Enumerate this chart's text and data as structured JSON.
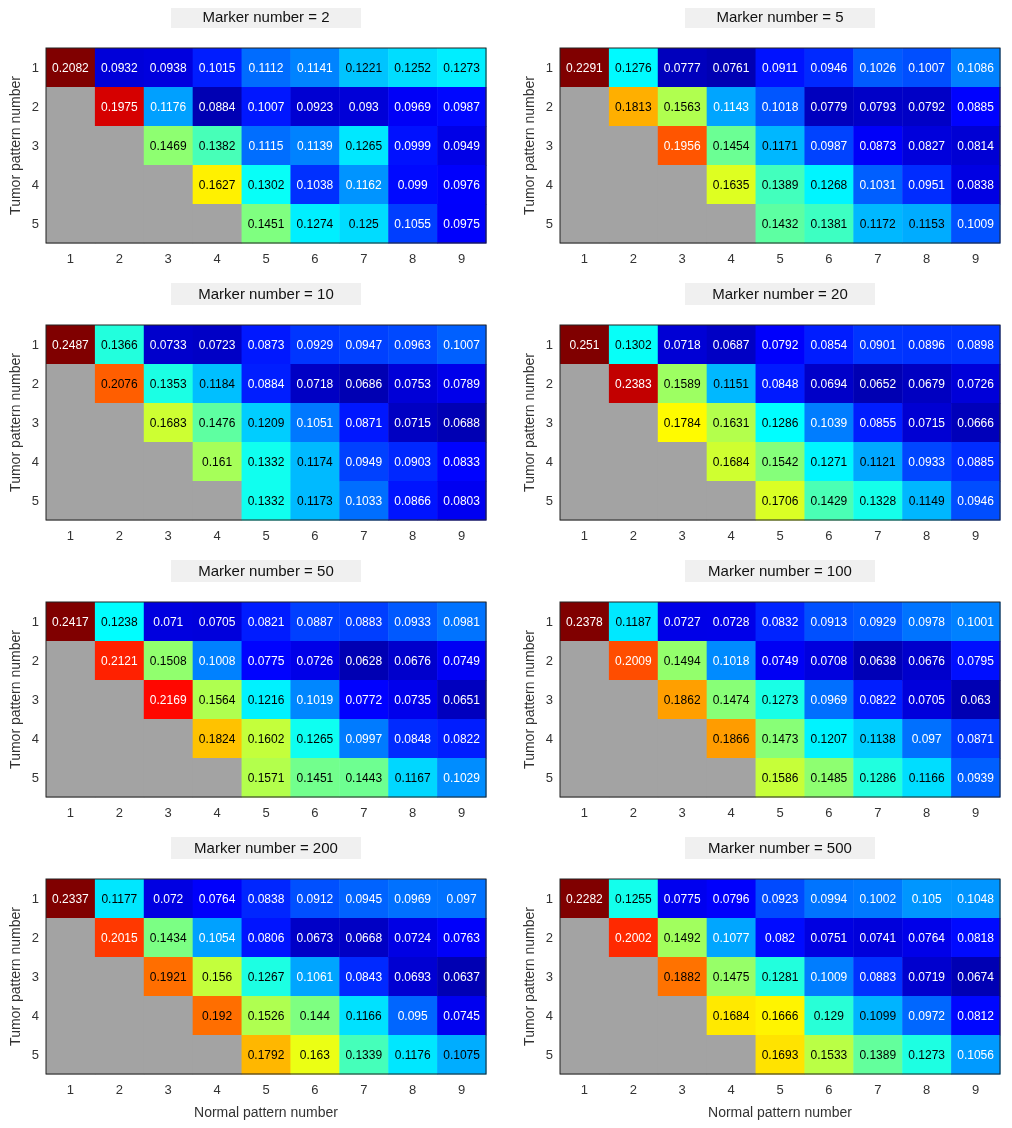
{
  "chart_data": [
    {
      "type": "heatmap",
      "title": "Marker number = 2",
      "ylabel": "Tumor pattern number",
      "categories": [
        "1",
        "2",
        "3",
        "4",
        "5",
        "6",
        "7",
        "8",
        "9"
      ],
      "y_categories": [
        "1",
        "2",
        "3",
        "4",
        "5"
      ],
      "data_labels": true,
      "cells": [
        [
          0.2082,
          0.0932,
          0.0938,
          0.1015,
          0.1112,
          0.1141,
          0.1221,
          0.1252,
          0.1273
        ],
        [
          null,
          0.1975,
          0.1176,
          0.0884,
          0.1007,
          0.0923,
          0.093,
          0.0969,
          0.0987
        ],
        [
          null,
          null,
          0.1469,
          0.1382,
          0.1115,
          0.1139,
          0.1265,
          0.0999,
          0.0949
        ],
        [
          null,
          null,
          null,
          0.1627,
          0.1302,
          0.1038,
          0.1162,
          0.099,
          0.0976
        ],
        [
          null,
          null,
          null,
          null,
          0.1451,
          0.1274,
          0.125,
          0.1055,
          0.0975
        ]
      ]
    },
    {
      "type": "heatmap",
      "title": "Marker number = 5",
      "ylabel": "Tumor pattern number",
      "categories": [
        "1",
        "2",
        "3",
        "4",
        "5",
        "6",
        "7",
        "8",
        "9"
      ],
      "y_categories": [
        "1",
        "2",
        "3",
        "4",
        "5"
      ],
      "data_labels": true,
      "cells": [
        [
          0.2291,
          0.1276,
          0.0777,
          0.0761,
          0.0911,
          0.0946,
          0.1026,
          0.1007,
          0.1086
        ],
        [
          null,
          0.1813,
          0.1563,
          0.1143,
          0.1018,
          0.0779,
          0.0793,
          0.0792,
          0.0885
        ],
        [
          null,
          null,
          0.1956,
          0.1454,
          0.1171,
          0.0987,
          0.0873,
          0.0827,
          0.0814
        ],
        [
          null,
          null,
          null,
          0.1635,
          0.1389,
          0.1268,
          0.1031,
          0.0951,
          0.0838
        ],
        [
          null,
          null,
          null,
          null,
          0.1432,
          0.1381,
          0.1172,
          0.1153,
          0.1009
        ]
      ]
    },
    {
      "type": "heatmap",
      "title": "Marker number = 10",
      "ylabel": "Tumor pattern number",
      "categories": [
        "1",
        "2",
        "3",
        "4",
        "5",
        "6",
        "7",
        "8",
        "9"
      ],
      "y_categories": [
        "1",
        "2",
        "3",
        "4",
        "5"
      ],
      "data_labels": true,
      "cells": [
        [
          0.2487,
          0.1366,
          0.0733,
          0.0723,
          0.0873,
          0.0929,
          0.0947,
          0.0963,
          0.1007
        ],
        [
          null,
          0.2076,
          0.1353,
          0.1184,
          0.0884,
          0.0718,
          0.0686,
          0.0753,
          0.0789
        ],
        [
          null,
          null,
          0.1683,
          0.1476,
          0.1209,
          0.1051,
          0.0871,
          0.0715,
          0.0688
        ],
        [
          null,
          null,
          null,
          0.161,
          0.1332,
          0.1174,
          0.0949,
          0.0903,
          0.0833
        ],
        [
          null,
          null,
          null,
          null,
          0.1332,
          0.1173,
          0.1033,
          0.0866,
          0.0803
        ]
      ]
    },
    {
      "type": "heatmap",
      "title": "Marker number = 20",
      "ylabel": "Tumor pattern number",
      "categories": [
        "1",
        "2",
        "3",
        "4",
        "5",
        "6",
        "7",
        "8",
        "9"
      ],
      "y_categories": [
        "1",
        "2",
        "3",
        "4",
        "5"
      ],
      "data_labels": true,
      "cells": [
        [
          0.251,
          0.1302,
          0.0718,
          0.0687,
          0.0792,
          0.0854,
          0.0901,
          0.0896,
          0.0898
        ],
        [
          null,
          0.2383,
          0.1589,
          0.1151,
          0.0848,
          0.0694,
          0.0652,
          0.0679,
          0.0726
        ],
        [
          null,
          null,
          0.1784,
          0.1631,
          0.1286,
          0.1039,
          0.0855,
          0.0715,
          0.0666
        ],
        [
          null,
          null,
          null,
          0.1684,
          0.1542,
          0.1271,
          0.1121,
          0.0933,
          0.0885
        ],
        [
          null,
          null,
          null,
          null,
          0.1706,
          0.1429,
          0.1328,
          0.1149,
          0.0946
        ]
      ]
    },
    {
      "type": "heatmap",
      "title": "Marker number = 50",
      "ylabel": "Tumor pattern number",
      "categories": [
        "1",
        "2",
        "3",
        "4",
        "5",
        "6",
        "7",
        "8",
        "9"
      ],
      "y_categories": [
        "1",
        "2",
        "3",
        "4",
        "5"
      ],
      "data_labels": true,
      "cells": [
        [
          0.2417,
          0.1238,
          0.071,
          0.0705,
          0.0821,
          0.0887,
          0.0883,
          0.0933,
          0.0981
        ],
        [
          null,
          0.2121,
          0.1508,
          0.1008,
          0.0775,
          0.0726,
          0.0628,
          0.0676,
          0.0749
        ],
        [
          null,
          null,
          0.2169,
          0.1564,
          0.1216,
          0.1019,
          0.0772,
          0.0735,
          0.0651
        ],
        [
          null,
          null,
          null,
          0.1824,
          0.1602,
          0.1265,
          0.0997,
          0.0848,
          0.0822
        ],
        [
          null,
          null,
          null,
          null,
          0.1571,
          0.1451,
          0.1443,
          0.1167,
          0.1029
        ]
      ]
    },
    {
      "type": "heatmap",
      "title": "Marker number = 100",
      "ylabel": "Tumor pattern number",
      "categories": [
        "1",
        "2",
        "3",
        "4",
        "5",
        "6",
        "7",
        "8",
        "9"
      ],
      "y_categories": [
        "1",
        "2",
        "3",
        "4",
        "5"
      ],
      "data_labels": true,
      "cells": [
        [
          0.2378,
          0.1187,
          0.0727,
          0.0728,
          0.0832,
          0.0913,
          0.0929,
          0.0978,
          0.1001
        ],
        [
          null,
          0.2009,
          0.1494,
          0.1018,
          0.0749,
          0.0708,
          0.0638,
          0.0676,
          0.0795
        ],
        [
          null,
          null,
          0.1862,
          0.1474,
          0.1273,
          0.0969,
          0.0822,
          0.0705,
          0.063
        ],
        [
          null,
          null,
          null,
          0.1866,
          0.1473,
          0.1207,
          0.1138,
          0.097,
          0.0871
        ],
        [
          null,
          null,
          null,
          null,
          0.1586,
          0.1485,
          0.1286,
          0.1166,
          0.0939
        ]
      ]
    },
    {
      "type": "heatmap",
      "title": "Marker number = 200",
      "xlabel": "Normal pattern number",
      "ylabel": "Tumor pattern number",
      "categories": [
        "1",
        "2",
        "3",
        "4",
        "5",
        "6",
        "7",
        "8",
        "9"
      ],
      "y_categories": [
        "1",
        "2",
        "3",
        "4",
        "5"
      ],
      "data_labels": true,
      "cells": [
        [
          0.2337,
          0.1177,
          0.072,
          0.0764,
          0.0838,
          0.0912,
          0.0945,
          0.0969,
          0.097
        ],
        [
          null,
          0.2015,
          0.1434,
          0.1054,
          0.0806,
          0.0673,
          0.0668,
          0.0724,
          0.0763
        ],
        [
          null,
          null,
          0.1921,
          0.156,
          0.1267,
          0.1061,
          0.0843,
          0.0693,
          0.0637
        ],
        [
          null,
          null,
          null,
          0.192,
          0.1526,
          0.144,
          0.1166,
          0.095,
          0.0745
        ],
        [
          null,
          null,
          null,
          null,
          0.1792,
          0.163,
          0.1339,
          0.1176,
          0.1075
        ]
      ]
    },
    {
      "type": "heatmap",
      "title": "Marker number = 500",
      "xlabel": "Normal pattern number",
      "ylabel": "Tumor pattern number",
      "categories": [
        "1",
        "2",
        "3",
        "4",
        "5",
        "6",
        "7",
        "8",
        "9"
      ],
      "y_categories": [
        "1",
        "2",
        "3",
        "4",
        "5"
      ],
      "data_labels": true,
      "cells": [
        [
          0.2282,
          0.1255,
          0.0775,
          0.0796,
          0.0923,
          0.0994,
          0.1002,
          0.105,
          0.1048
        ],
        [
          null,
          0.2002,
          0.1492,
          0.1077,
          0.082,
          0.0751,
          0.0741,
          0.0764,
          0.0818
        ],
        [
          null,
          null,
          0.1882,
          0.1475,
          0.1281,
          0.1009,
          0.0883,
          0.0719,
          0.0674
        ],
        [
          null,
          null,
          null,
          0.1684,
          0.1666,
          0.129,
          0.1099,
          0.0972,
          0.0812
        ],
        [
          null,
          null,
          null,
          null,
          0.1693,
          0.1533,
          0.1389,
          0.1273,
          0.1056
        ]
      ]
    }
  ]
}
